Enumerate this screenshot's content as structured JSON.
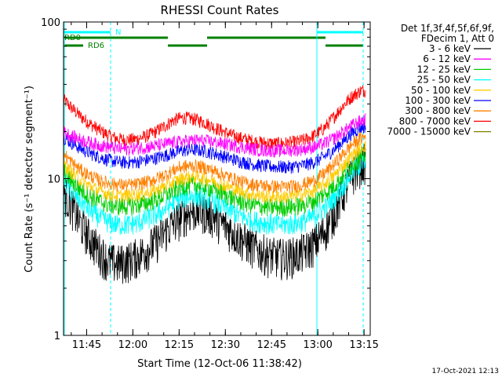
{
  "chart_data": {
    "type": "line",
    "title": "RHESSI Count Rates",
    "xlabel": "Start Time (12-Oct-06 11:38:42)",
    "ylabel": "Count Rate (s⁻¹ detector segment⁻¹)",
    "yscale": "log",
    "ylim": [
      1,
      100
    ],
    "xlim_minutes": [
      697.5,
      797.0
    ],
    "x_ticks": [
      {
        "min": 705,
        "label": "11:45"
      },
      {
        "min": 720,
        "label": "12:00"
      },
      {
        "min": 735,
        "label": "12:15"
      },
      {
        "min": 750,
        "label": "12:30"
      },
      {
        "min": 765,
        "label": "12:45"
      },
      {
        "min": 780,
        "label": "13:00"
      },
      {
        "min": 795,
        "label": "13:15"
      }
    ],
    "y_ticks": [
      {
        "value": 1,
        "label": "1"
      },
      {
        "value": 10,
        "label": "10"
      },
      {
        "value": 100,
        "label": "100"
      }
    ],
    "x_minutes": [
      697.5,
      700,
      703,
      706,
      709,
      712,
      715,
      718,
      721,
      724,
      727,
      730,
      733,
      735,
      737,
      740,
      743,
      746,
      749,
      752,
      755,
      758,
      761,
      764,
      767,
      770,
      773,
      776,
      779,
      782,
      785,
      788,
      791,
      794,
      797
    ],
    "legend": {
      "header": [
        "Det 1f,3f,4f,5f,6f,9f,",
        "FDecim 1, Att 0"
      ],
      "placement": "right"
    },
    "series": [
      {
        "name": "3 - 6 keV",
        "color": "#000000",
        "values": [
          8.5,
          6.8,
          5.2,
          4.2,
          3.5,
          3.0,
          2.9,
          3.0,
          3.2,
          3.5,
          3.9,
          4.5,
          5.2,
          5.6,
          6.0,
          6.3,
          6.2,
          5.8,
          5.2,
          4.7,
          4.2,
          3.8,
          3.5,
          3.3,
          3.2,
          3.2,
          3.3,
          3.5,
          3.9,
          4.6,
          5.9,
          8.0,
          10.5,
          12.5,
          13.5
        ]
      },
      {
        "name": "6 - 12 keV",
        "color": "#ff00ff",
        "values": [
          20.0,
          18.8,
          17.8,
          17.0,
          16.4,
          16.0,
          15.6,
          15.5,
          15.7,
          15.9,
          16.2,
          16.6,
          17.0,
          17.2,
          17.4,
          17.6,
          17.5,
          17.2,
          16.8,
          16.4,
          16.0,
          15.6,
          15.3,
          15.2,
          15.1,
          15.2,
          15.3,
          15.6,
          16.0,
          16.8,
          18.0,
          19.8,
          21.8,
          23.5,
          24.5
        ]
      },
      {
        "name": "12 - 25 keV",
        "color": "#00cc00",
        "values": [
          11.2,
          9.8,
          8.6,
          7.8,
          7.2,
          6.9,
          6.7,
          6.7,
          6.8,
          7.0,
          7.3,
          7.8,
          8.4,
          8.8,
          9.0,
          9.2,
          9.0,
          8.6,
          8.1,
          7.6,
          7.2,
          6.9,
          6.7,
          6.6,
          6.6,
          6.6,
          6.7,
          6.9,
          7.3,
          8.0,
          9.0,
          10.5,
          12.3,
          13.8,
          14.8
        ]
      },
      {
        "name": "25 - 50 keV",
        "color": "#00ffff",
        "values": [
          9.8,
          8.4,
          7.2,
          6.3,
          5.7,
          5.3,
          5.1,
          5.1,
          5.2,
          5.5,
          5.8,
          6.3,
          7.0,
          7.4,
          7.7,
          7.8,
          7.6,
          7.2,
          6.7,
          6.2,
          5.8,
          5.5,
          5.3,
          5.2,
          5.1,
          5.1,
          5.2,
          5.4,
          5.8,
          6.5,
          7.5,
          9.0,
          11.0,
          12.5,
          13.2
        ]
      },
      {
        "name": "50 - 100 keV",
        "color": "#ffcc00",
        "values": [
          12.5,
          11.0,
          9.8,
          9.0,
          8.4,
          8.0,
          7.8,
          7.8,
          7.9,
          8.1,
          8.4,
          8.9,
          9.5,
          9.9,
          10.2,
          10.3,
          10.1,
          9.7,
          9.2,
          8.7,
          8.3,
          8.0,
          7.8,
          7.7,
          7.7,
          7.7,
          7.8,
          8.0,
          8.4,
          9.2,
          10.3,
          12.0,
          14.0,
          15.8,
          16.8
        ]
      },
      {
        "name": "100 - 300 keV",
        "color": "#0000ff",
        "values": [
          18.5,
          17.0,
          15.6,
          14.6,
          13.8,
          13.2,
          12.8,
          12.7,
          12.8,
          13.1,
          13.5,
          14.0,
          14.6,
          15.0,
          15.2,
          15.3,
          15.1,
          14.6,
          14.0,
          13.4,
          12.9,
          12.5,
          12.2,
          12.0,
          11.9,
          11.9,
          12.0,
          12.3,
          12.8,
          13.8,
          15.2,
          17.2,
          19.5,
          21.2,
          22.0
        ]
      },
      {
        "name": "300 - 800 keV",
        "color": "#ff8000",
        "values": [
          14.5,
          12.8,
          11.4,
          10.5,
          9.8,
          9.4,
          9.2,
          9.1,
          9.2,
          9.5,
          9.9,
          10.5,
          11.3,
          11.8,
          12.0,
          12.1,
          11.8,
          11.3,
          10.7,
          10.1,
          9.6,
          9.3,
          9.1,
          9.0,
          8.9,
          8.9,
          9.0,
          9.3,
          9.8,
          10.8,
          12.2,
          14.2,
          16.5,
          18.2,
          19.0
        ]
      },
      {
        "name": "800 - 7000 keV",
        "color": "#ff0000",
        "values": [
          32.0,
          28.5,
          25.0,
          22.5,
          20.5,
          19.0,
          18.0,
          17.7,
          17.9,
          18.6,
          19.8,
          21.5,
          23.5,
          24.3,
          24.5,
          24.0,
          23.0,
          21.5,
          20.2,
          19.0,
          18.2,
          17.6,
          17.1,
          16.9,
          16.8,
          16.9,
          17.2,
          17.8,
          19.0,
          21.0,
          24.5,
          29.0,
          33.5,
          36.5,
          37.0
        ]
      },
      {
        "name": "7000 - 15000 keV",
        "color": "#808000",
        "values": [
          null,
          null,
          null,
          null,
          null,
          null,
          null,
          null,
          null,
          null,
          null,
          null,
          null,
          null,
          null,
          null,
          null,
          null,
          null,
          null,
          null,
          null,
          null,
          null,
          null,
          null,
          null,
          null,
          null,
          null,
          null,
          null,
          null,
          null,
          null
        ]
      }
    ],
    "annotations": {
      "segment_labels": [
        {
          "text": "RD0",
          "color": "#008000"
        },
        {
          "text": "RD6",
          "color": "#008000"
        },
        {
          "text": "N",
          "color": "#00ffff"
        }
      ]
    }
  },
  "timestamp": "17-Oct-2021 12:13"
}
